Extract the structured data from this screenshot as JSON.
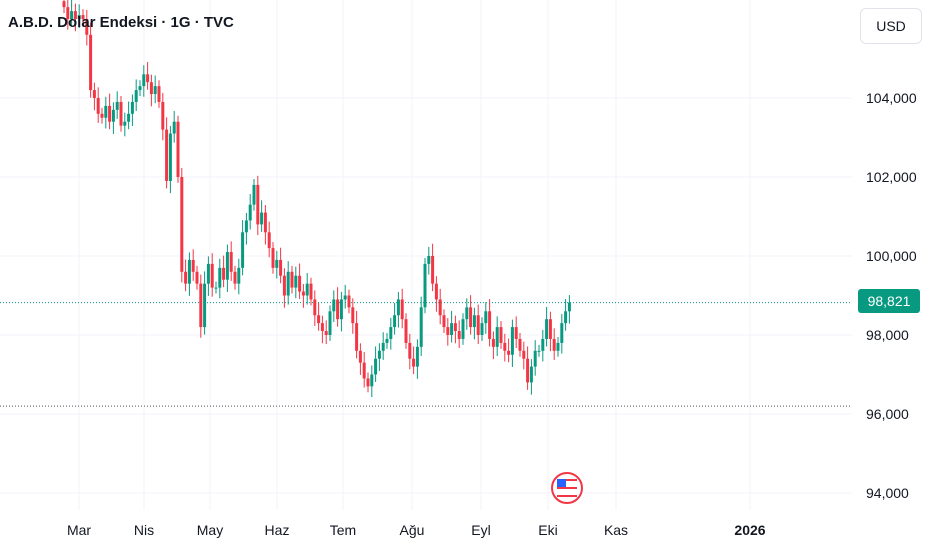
{
  "header": {
    "title": "A.B.D. Dolar Endeksi · 1G · TVC",
    "currency": "USD"
  },
  "price_scale": {
    "current_price_label": "98,821",
    "tick_labels": [
      "104,000",
      "102,000",
      "100,000",
      "98,000",
      "96,000",
      "94,000"
    ]
  },
  "time_axis": {
    "labels": [
      "Mar",
      "Nis",
      "May",
      "Haz",
      "Tem",
      "Ağu",
      "Eyl",
      "Eki",
      "Kas",
      "2026"
    ]
  },
  "event_marker": {
    "icon": "us-flag-icon"
  },
  "colors": {
    "up": "#089981",
    "down": "#f23645",
    "grid": "#f0f3fa",
    "text": "#131722"
  },
  "chart_data": {
    "type": "candlestick",
    "title": "A.B.D. Dolar Endeksi · 1G · TVC",
    "interval": "1G",
    "source": "TVC",
    "currency": "USD",
    "ylim": [
      93.7,
      106.3
    ],
    "y_ticks": [
      94,
      96,
      98,
      100,
      102,
      104
    ],
    "x_ticks": [
      "Mar",
      "Nis",
      "May",
      "Haz",
      "Tem",
      "Ağu",
      "Eyl",
      "Eki",
      "Kas",
      "2026"
    ],
    "grid": true,
    "current_price": 98.821,
    "low_reference_line": 96.2,
    "closes": [
      106.3,
      106.0,
      106.2,
      106.0,
      106.1,
      106.0,
      105.6,
      104.2,
      104.0,
      103.6,
      103.5,
      103.8,
      103.4,
      103.7,
      103.9,
      103.3,
      103.4,
      103.6,
      103.9,
      104.2,
      104.3,
      104.6,
      104.4,
      104.1,
      104.3,
      103.9,
      103.2,
      101.9,
      103.1,
      103.4,
      102.0,
      99.6,
      99.3,
      99.9,
      99.6,
      99.3,
      98.2,
      99.3,
      99.8,
      99.2,
      99.2,
      99.7,
      99.4,
      100.1,
      99.6,
      99.3,
      99.7,
      100.6,
      100.9,
      101.3,
      101.8,
      100.8,
      101.1,
      100.6,
      100.2,
      99.7,
      99.9,
      99.5,
      99.0,
      99.6,
      99.2,
      99.5,
      99.1,
      99.0,
      99.3,
      98.9,
      98.5,
      98.3,
      98.1,
      98.0,
      98.6,
      98.9,
      98.4,
      98.9,
      99.0,
      98.7,
      98.3,
      97.6,
      97.3,
      96.9,
      96.7,
      97.0,
      97.4,
      97.6,
      97.8,
      97.9,
      98.2,
      98.5,
      98.9,
      98.4,
      97.8,
      97.4,
      97.2,
      97.7,
      98.7,
      99.8,
      100.0,
      99.3,
      98.9,
      98.5,
      98.2,
      98.0,
      98.3,
      98.1,
      97.9,
      98.4,
      98.7,
      98.2,
      98.5,
      98.0,
      98.3,
      98.6,
      97.9,
      97.7,
      98.2,
      97.8,
      97.6,
      97.5,
      98.2,
      97.9,
      97.6,
      97.4,
      96.8,
      97.2,
      97.6,
      97.6,
      97.9,
      98.4,
      97.9,
      97.6,
      97.8,
      98.3,
      98.6,
      98.821
    ]
  }
}
